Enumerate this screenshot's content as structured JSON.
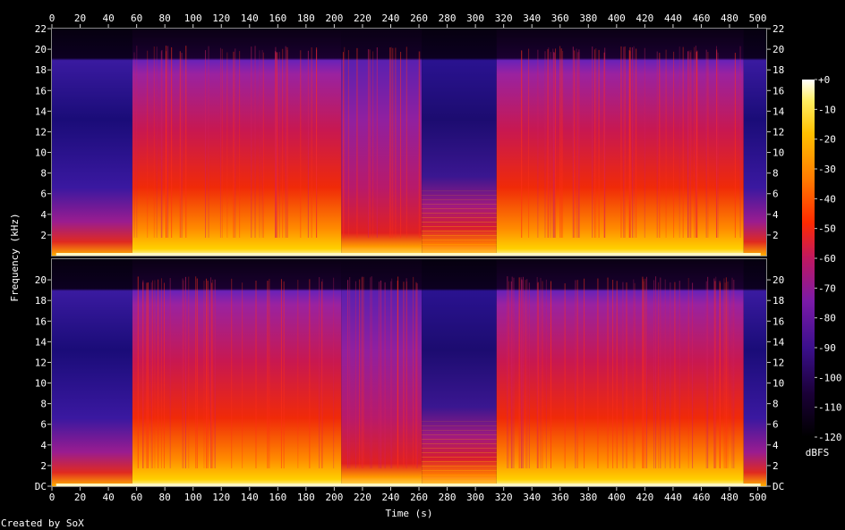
{
  "chart_data": {
    "type": "heatmap",
    "title": "",
    "xlabel": "Time (s)",
    "ylabel": "Frequency (kHz)",
    "colorbar_label": "dBFS",
    "credit": "Created by SoX",
    "channels": 2,
    "x_ticks": [
      "0",
      "20",
      "40",
      "60",
      "80",
      "100",
      "120",
      "140",
      "160",
      "180",
      "200",
      "220",
      "240",
      "260",
      "280",
      "300",
      "320",
      "340",
      "360",
      "380",
      "400",
      "420",
      "440",
      "460",
      "480",
      "500"
    ],
    "y_ticks_top": [
      "2",
      "4",
      "6",
      "8",
      "10",
      "12",
      "14",
      "16",
      "18",
      "20",
      "22"
    ],
    "y_ticks_bottom": [
      "DC",
      "2",
      "4",
      "6",
      "8",
      "10",
      "12",
      "14",
      "16",
      "18",
      "20"
    ],
    "colorbar_ticks": [
      "+0",
      "-10",
      "-20",
      "-30",
      "-40",
      "-50",
      "-60",
      "-70",
      "-80",
      "-90",
      "-100",
      "-110",
      "-120"
    ],
    "xlim": [
      0,
      506
    ],
    "ylim_khz": [
      0,
      22
    ],
    "zlim_dbfs": [
      -120,
      0
    ],
    "segments_seconds": [
      {
        "start": 0,
        "end": 57,
        "level": "quiet intro"
      },
      {
        "start": 57,
        "end": 205,
        "level": "loud"
      },
      {
        "start": 205,
        "end": 262,
        "level": "medium"
      },
      {
        "start": 262,
        "end": 315,
        "level": "quiet, low-band energy"
      },
      {
        "start": 315,
        "end": 490,
        "level": "loud"
      },
      {
        "start": 490,
        "end": 506,
        "level": "fade out"
      }
    ],
    "bandwidth_cutoff_khz": 20,
    "colors": [
      "#000000",
      "#1a0036",
      "#3b0f8c",
      "#6a1ab0",
      "#a0208f",
      "#d1153d",
      "#ff2a00",
      "#ff7a00",
      "#ffc000",
      "#ffee60",
      "#ffffff"
    ]
  }
}
